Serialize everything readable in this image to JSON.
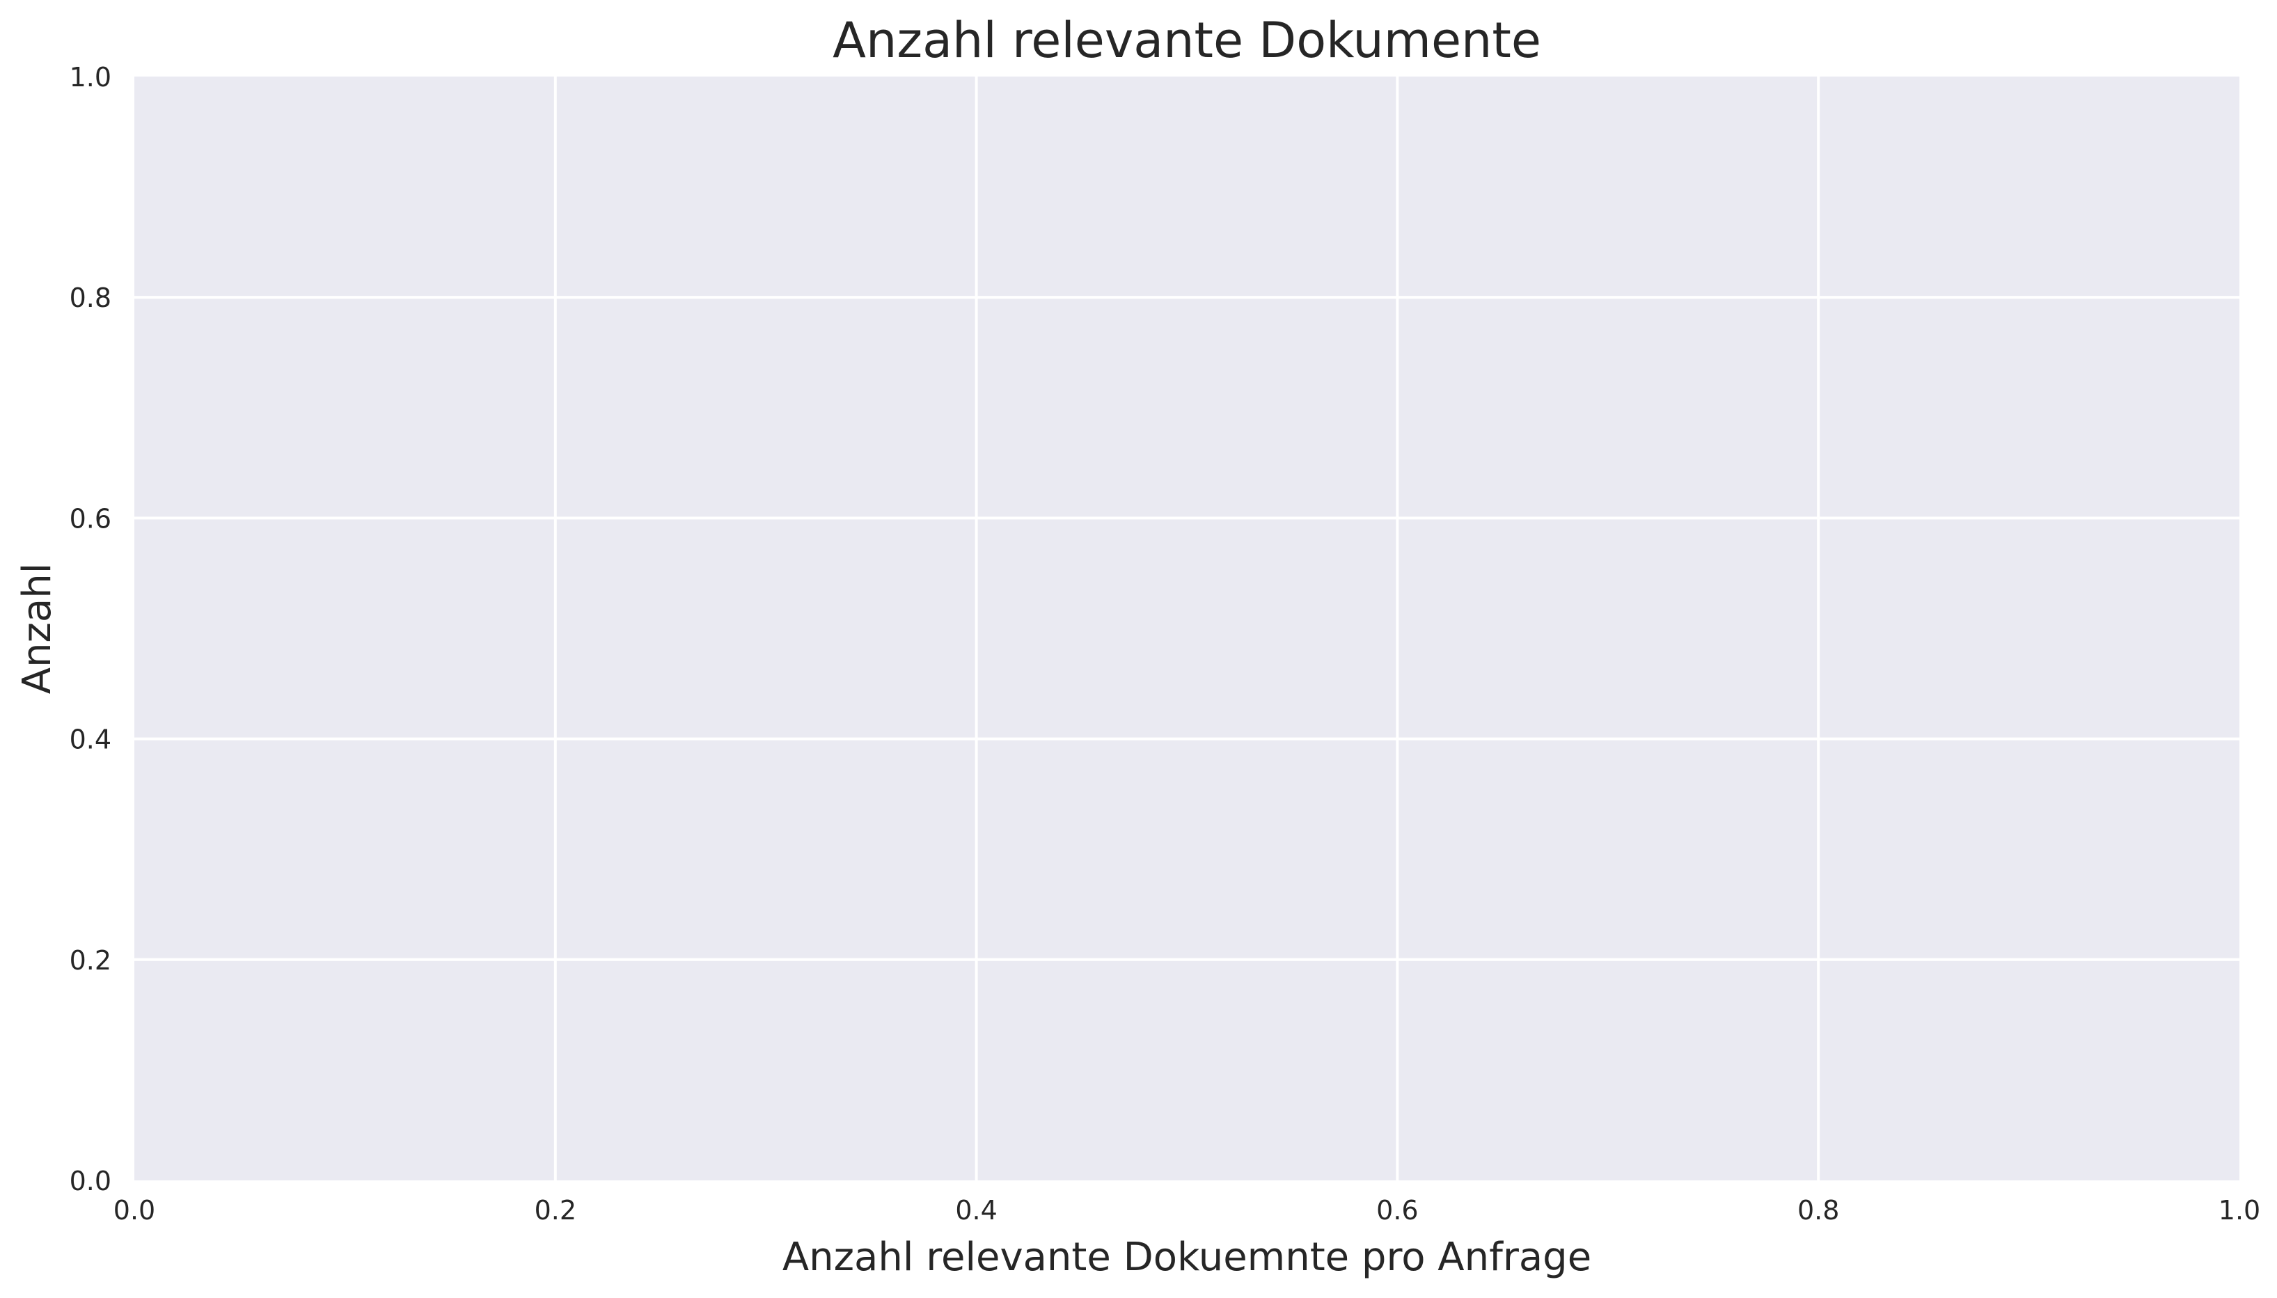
{
  "chart_data": {
    "type": "bar",
    "title": "Anzahl relevante Dokumente",
    "xlabel": "Anzahl relevante Dokuemnte pro Anfrage",
    "ylabel": "Anzahl",
    "xlim": [
      0,
      1
    ],
    "ylim": [
      0,
      1
    ],
    "xticks": [
      "0.0",
      "0.2",
      "0.4",
      "0.6",
      "0.8",
      "1.0"
    ],
    "yticks": [
      "0.0",
      "0.2",
      "0.4",
      "0.6",
      "0.8",
      "1.0"
    ],
    "grid": true,
    "categories": [],
    "values": [],
    "colors": {
      "plot_background": "#eaeaf2",
      "grid": "#ffffff",
      "text": "#262626"
    }
  }
}
